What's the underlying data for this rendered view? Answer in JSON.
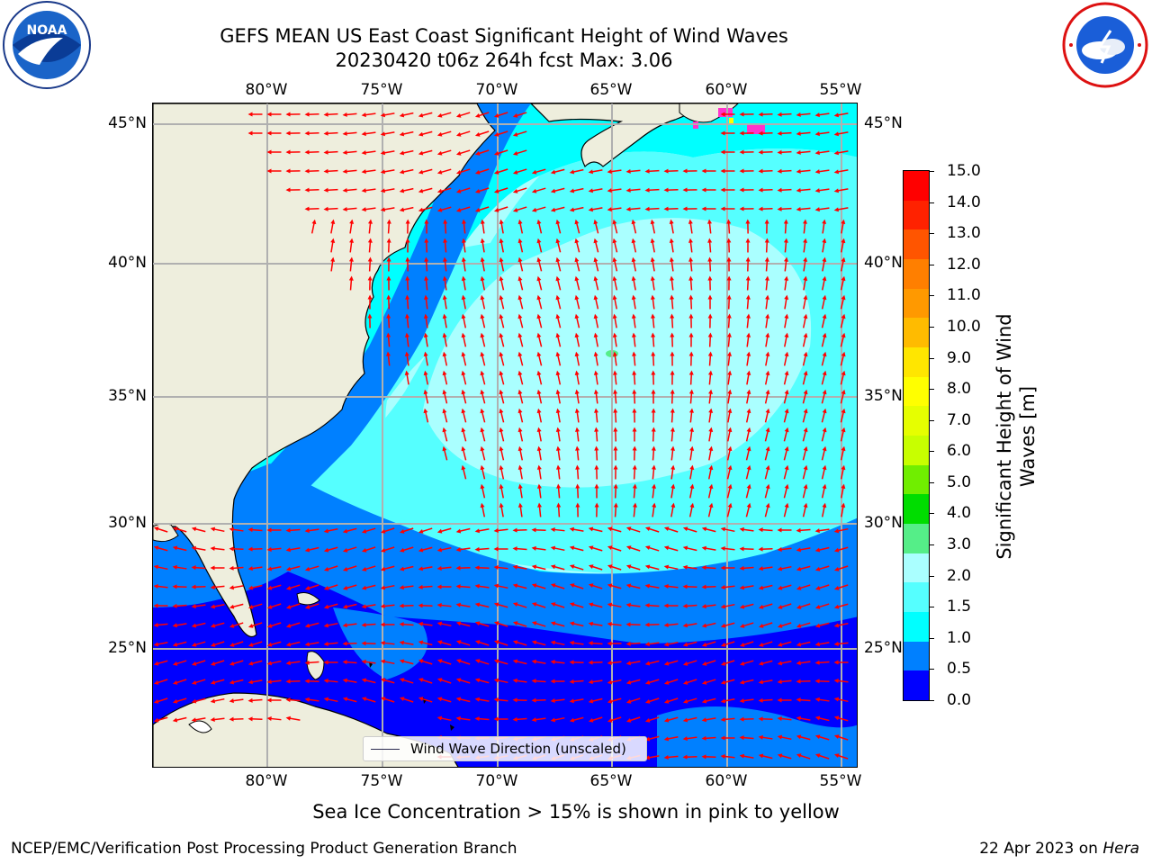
{
  "header": {
    "title_line1": "GEFS MEAN US East Coast Significant Height of Wind Waves",
    "title_line2": "20230420 t06z 264h fcst   Max: 3.06"
  },
  "logos": {
    "left": "NOAA",
    "right": "NATIONAL WEATHER SERVICE"
  },
  "axes": {
    "longitudes": [
      "80°W",
      "75°W",
      "70°W",
      "65°W",
      "60°W",
      "55°W"
    ],
    "latitudes": [
      "45°N",
      "40°N",
      "35°N",
      "30°N",
      "25°N"
    ]
  },
  "colorbar": {
    "label": "Significant Height of Wind Waves [m]",
    "ticks": [
      "15.0",
      "14.0",
      "13.0",
      "12.0",
      "11.0",
      "10.0",
      "9.0",
      "8.0",
      "7.0",
      "6.0",
      "5.0",
      "4.0",
      "3.0",
      "2.0",
      "1.5",
      "1.0",
      "0.5",
      "0.0"
    ],
    "colors": [
      "#ff0000",
      "#ff2200",
      "#ff5500",
      "#ff7f00",
      "#ff9900",
      "#ffbb00",
      "#ffe600",
      "#ffff00",
      "#e6ff00",
      "#c8ff00",
      "#70ee00",
      "#00dd00",
      "#55ee88",
      "#aaffff",
      "#55ffff",
      "#00ffff",
      "#0080ff",
      "#0000ff"
    ],
    "accent_land": "#eeeedd"
  },
  "legend": {
    "label": "Wind Wave Direction (unscaled)"
  },
  "note": "Sea Ice Concentration > 15% is shown in pink to yellow",
  "footer": {
    "left": "NCEP/EMC/Verification Post Processing Product Generation Branch",
    "right_date": "22 Apr 2023 on",
    "right_host": "Hera"
  }
}
